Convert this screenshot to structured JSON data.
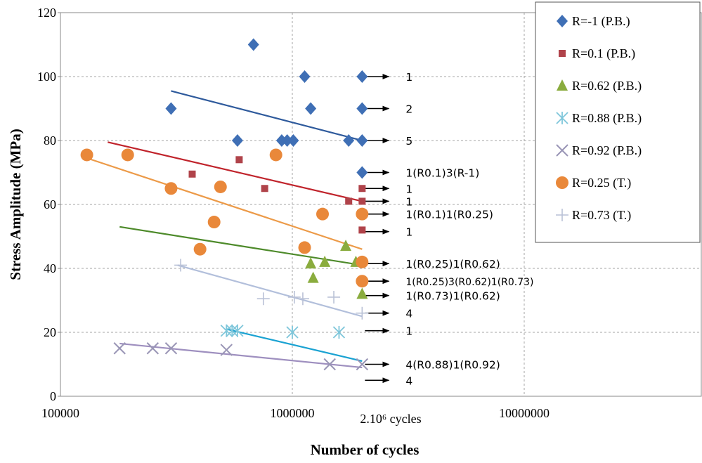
{
  "chart_data": {
    "type": "scatter",
    "xlabel": "Number of cycles",
    "ylabel": "Stress Amplitude (MPa)",
    "xscale": "log",
    "xlim": [
      100000,
      50000000
    ],
    "ylim": [
      0,
      120
    ],
    "grid": true,
    "legend_position": "top-right",
    "x_ticks": [
      "100000",
      "1000000",
      "10000000"
    ],
    "x_tick_values": [
      100000,
      1000000,
      10000000
    ],
    "y_ticks": [
      "0",
      "20",
      "40",
      "60",
      "80",
      "100",
      "120"
    ],
    "y_tick_values": [
      0,
      20,
      40,
      60,
      80,
      100,
      120
    ],
    "x_marker_label": "2.10⁶ cycles",
    "runout_x": 2000000,
    "series": [
      {
        "name": "R=-1 (P.B.)",
        "marker": "diamond",
        "color": "#3f6fb5",
        "points": [
          [
            300000,
            90
          ],
          [
            580000,
            80
          ],
          [
            680000,
            110
          ],
          [
            900000,
            80
          ],
          [
            950000,
            80
          ],
          [
            1010000,
            80
          ],
          [
            1130000,
            100
          ],
          [
            1200000,
            90
          ],
          [
            1750000,
            80
          ],
          [
            2000000,
            100
          ],
          [
            2000000,
            90
          ],
          [
            2000000,
            80
          ],
          [
            2000000,
            70
          ]
        ],
        "fit": [
          [
            300000,
            95.5
          ],
          [
            2000000,
            80
          ]
        ],
        "fit_color": "#2e5a9c"
      },
      {
        "name": "R=0.1 (P.B.)",
        "marker": "square",
        "color": "#b0434a",
        "points": [
          [
            370000,
            69.5
          ],
          [
            590000,
            74
          ],
          [
            760000,
            65
          ],
          [
            1750000,
            61
          ],
          [
            2000000,
            65
          ],
          [
            2000000,
            61
          ],
          [
            2000000,
            52
          ]
        ],
        "fit": [
          [
            160000,
            79.5
          ],
          [
            2000000,
            61
          ]
        ],
        "fit_color": "#c0232b"
      },
      {
        "name": "R=0.62 (P.B.)",
        "marker": "triangle",
        "color": "#8aac3e",
        "points": [
          [
            1200000,
            41.5
          ],
          [
            1230000,
            37
          ],
          [
            1380000,
            42
          ],
          [
            1700000,
            47
          ],
          [
            1880000,
            42
          ],
          [
            2000000,
            32
          ]
        ],
        "fit": [
          [
            180000,
            53
          ],
          [
            2000000,
            41
          ]
        ],
        "fit_color": "#4d8a2a"
      },
      {
        "name": "R=0.88 (P.B.)",
        "marker": "asterisk",
        "color": "#7ec6da",
        "points": [
          [
            520000,
            20.5
          ],
          [
            550000,
            20.5
          ],
          [
            580000,
            20.5
          ],
          [
            1000000,
            20
          ],
          [
            1590000,
            20
          ]
        ],
        "fit": [
          [
            520000,
            21
          ],
          [
            2000000,
            11
          ]
        ],
        "fit_color": "#1aa2d2"
      },
      {
        "name": "R=0.92 (P.B.)",
        "marker": "cross",
        "color": "#9a96b6",
        "points": [
          [
            180000,
            15
          ],
          [
            250000,
            15
          ],
          [
            300000,
            15
          ],
          [
            520000,
            14.5
          ],
          [
            1450000,
            10
          ],
          [
            2000000,
            10
          ]
        ],
        "fit": [
          [
            180000,
            16.5
          ],
          [
            2000000,
            9
          ]
        ],
        "fit_color": "#9e8fbf"
      },
      {
        "name": "R=0.25 (T.)",
        "marker": "circle",
        "color": "#e9883a",
        "points": [
          [
            130000,
            75.5
          ],
          [
            195000,
            75.5
          ],
          [
            300000,
            65
          ],
          [
            460000,
            54.5
          ],
          [
            490000,
            65.5
          ],
          [
            400000,
            46
          ],
          [
            850000,
            75.5
          ],
          [
            1130000,
            46.5
          ],
          [
            1350000,
            57
          ],
          [
            2000000,
            57
          ],
          [
            2000000,
            42
          ],
          [
            2000000,
            36
          ]
        ],
        "fit": [
          [
            130000,
            74.5
          ],
          [
            2000000,
            46
          ]
        ],
        "fit_color": "#ec9a48"
      },
      {
        "name": "R=0.73 (T.)",
        "marker": "plus",
        "color": "#b9c1d6",
        "points": [
          [
            330000,
            41
          ],
          [
            750000,
            30.5
          ],
          [
            1020000,
            31
          ],
          [
            1110000,
            30.5
          ],
          [
            1510000,
            31
          ],
          [
            2000000,
            26
          ]
        ],
        "fit": [
          [
            320000,
            41
          ],
          [
            2000000,
            25
          ]
        ],
        "fit_color": "#b2bfdb"
      }
    ],
    "annotations": [
      {
        "y": 100,
        "text": "1"
      },
      {
        "y": 90,
        "text": "2"
      },
      {
        "y": 80,
        "text": "5"
      },
      {
        "y": 70,
        "text": "1(R0.1)3(R-1)"
      },
      {
        "y": 65,
        "text": "1"
      },
      {
        "y": 61,
        "text": "1"
      },
      {
        "y": 57,
        "text": "1(R0.1)1(R0.25)"
      },
      {
        "y": 51.5,
        "text": "1"
      },
      {
        "y": 41.5,
        "text": "1(R0.25)1(R0.62)"
      },
      {
        "y": 36,
        "text": "1(R0.25)3(R0.62)1(R0.73)"
      },
      {
        "y": 31.5,
        "text": "1(R0.73)1(R0.62)"
      },
      {
        "y": 26,
        "text": "4"
      },
      {
        "y": 20.5,
        "text": "1"
      },
      {
        "y": 10,
        "text": "4(R0.88)1(R0.92)"
      },
      {
        "y": 5,
        "text": "4"
      }
    ]
  }
}
